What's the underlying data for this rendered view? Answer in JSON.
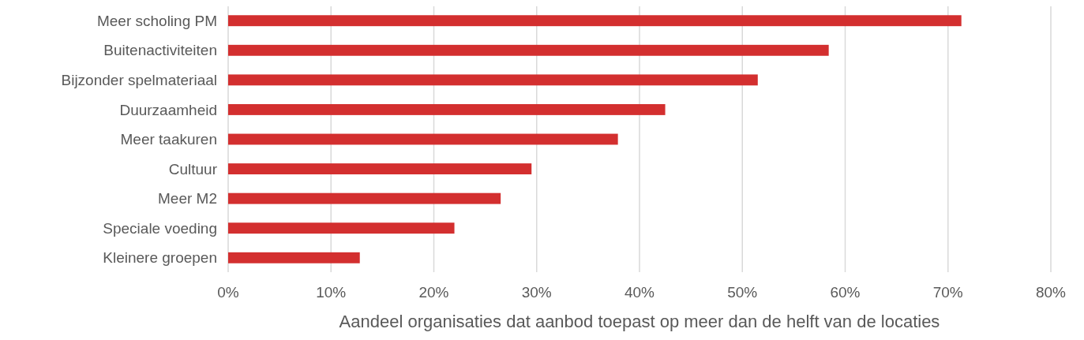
{
  "chart_data": {
    "type": "bar",
    "orientation": "horizontal",
    "xlabel": "Aandeel organisaties dat aanbod toepast op meer dan de helft van de locaties",
    "categories": [
      "Meer scholing PM",
      "Buitenactiviteiten",
      "Bijzonder spelmateriaal",
      "Duurzaamheid",
      "Meer taakuren",
      "Cultuur",
      "Meer M2",
      "Speciale voeding",
      "Kleinere groepen"
    ],
    "values": [
      71.3,
      58.4,
      51.5,
      42.5,
      37.9,
      29.5,
      26.5,
      22.0,
      12.8
    ],
    "color": "#d32f2f",
    "xlim": [
      0,
      80
    ],
    "xticks": [
      {
        "value": 0,
        "label": "0%"
      },
      {
        "value": 10,
        "label": "10%"
      },
      {
        "value": 20,
        "label": "20%"
      },
      {
        "value": 30,
        "label": "30%"
      },
      {
        "value": 40,
        "label": "40%"
      },
      {
        "value": 50,
        "label": "50%"
      },
      {
        "value": 60,
        "label": "60%"
      },
      {
        "value": 70,
        "label": "70%"
      },
      {
        "value": 80,
        "label": "80%"
      }
    ],
    "grid": "x",
    "legend": false
  }
}
